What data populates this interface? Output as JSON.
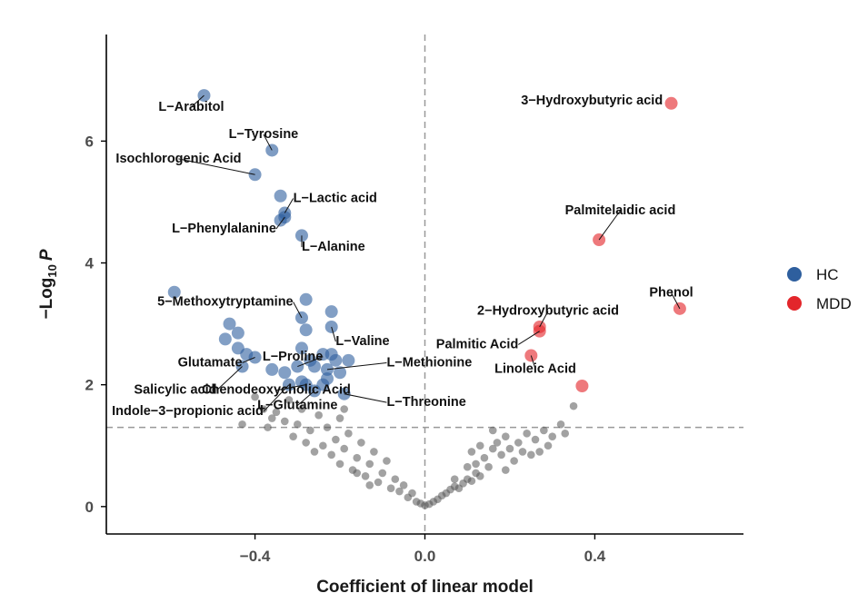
{
  "chart_data": {
    "type": "scatter",
    "title": "",
    "xlabel": "Coefficient of linear model",
    "ylabel_parts": {
      "prefix": "−Log",
      "subscript": "10",
      "suffix": "P"
    },
    "xlim": [
      -0.75,
      0.75
    ],
    "ylim": [
      -0.45,
      7.75
    ],
    "x_ticks": [
      -0.4,
      0.0,
      0.4
    ],
    "x_tick_labels": [
      "−0.4",
      "0.0",
      "0.4"
    ],
    "y_ticks": [
      0,
      2,
      4,
      6
    ],
    "y_tick_labels": [
      "0",
      "2",
      "4",
      "6"
    ],
    "threshold_y": 1.3,
    "threshold_x": 0.0,
    "colors": {
      "HC": "#2E5F9E",
      "MDD": "#E3262B",
      "NS": "#555555",
      "threshold": "#999999",
      "axis": "#000000"
    },
    "legend": [
      {
        "name": "HC",
        "color": "#2E5F9E"
      },
      {
        "name": "MDD",
        "color": "#E3262B"
      }
    ],
    "labeled_points": [
      {
        "name": "L−Arabitol",
        "x": -0.52,
        "y": 6.75,
        "group": "HC",
        "anchor": "middle",
        "lx": -0.55,
        "ly": 6.5
      },
      {
        "name": "L−Tyrosine",
        "x": -0.36,
        "y": 5.85,
        "group": "HC",
        "anchor": "middle",
        "lx": -0.38,
        "ly": 6.05
      },
      {
        "name": "Isochlorogenic Acid",
        "x": -0.4,
        "y": 5.45,
        "group": "HC",
        "anchor": "middle",
        "lx": -0.58,
        "ly": 5.65
      },
      {
        "name": "L−Lactic acid",
        "x": -0.33,
        "y": 4.82,
        "group": "HC",
        "anchor": "start",
        "lx": -0.31,
        "ly": 5.0
      },
      {
        "name": "L−Phenylalanine",
        "x": -0.33,
        "y": 4.75,
        "group": "HC",
        "anchor": "end",
        "lx": -0.35,
        "ly": 4.5
      },
      {
        "name": "L−Alanine",
        "x": -0.29,
        "y": 4.45,
        "group": "HC",
        "anchor": "start",
        "lx": -0.29,
        "ly": 4.2
      },
      {
        "name": "5−Methoxytryptamine",
        "x": -0.29,
        "y": 3.1,
        "group": "HC",
        "anchor": "end",
        "lx": -0.31,
        "ly": 3.3
      },
      {
        "name": "L−Valine",
        "x": -0.22,
        "y": 2.95,
        "group": "HC",
        "anchor": "start",
        "lx": -0.21,
        "ly": 2.65
      },
      {
        "name": "Glutamate",
        "x": -0.4,
        "y": 2.45,
        "group": "HC",
        "anchor": "end",
        "lx": -0.43,
        "ly": 2.3
      },
      {
        "name": "L−Proline",
        "x": -0.3,
        "y": 2.3,
        "group": "HC",
        "anchor": "end",
        "lx": -0.24,
        "ly": 2.4
      },
      {
        "name": "L−Methionine",
        "x": -0.23,
        "y": 2.25,
        "group": "HC",
        "anchor": "start",
        "lx": -0.09,
        "ly": 2.3
      },
      {
        "name": "Salicylic acid",
        "x": -0.43,
        "y": 2.3,
        "group": "HC",
        "anchor": "end",
        "lx": -0.49,
        "ly": 1.85
      },
      {
        "name": "Chenodeoxycholic Acid",
        "x": -0.28,
        "y": 2.0,
        "group": "HC",
        "anchor": "middle",
        "lx": -0.35,
        "ly": 1.85
      },
      {
        "name": "Indole−3−propionic acid",
        "x": -0.32,
        "y": 2.0,
        "group": "HC",
        "anchor": "end",
        "lx": -0.38,
        "ly": 1.5
      },
      {
        "name": "L−Glutamine",
        "x": -0.26,
        "y": 1.9,
        "group": "HC",
        "anchor": "middle",
        "lx": -0.3,
        "ly": 1.6
      },
      {
        "name": "L−Threonine",
        "x": -0.19,
        "y": 1.85,
        "group": "HC",
        "anchor": "start",
        "lx": -0.09,
        "ly": 1.65
      },
      {
        "name": "3−Hydroxybutyric acid",
        "x": 0.58,
        "y": 6.62,
        "group": "MDD",
        "anchor": "end",
        "lx": 0.56,
        "ly": 6.6
      },
      {
        "name": "Palmitelaidic acid",
        "x": 0.41,
        "y": 4.38,
        "group": "MDD",
        "anchor": "middle",
        "lx": 0.46,
        "ly": 4.8
      },
      {
        "name": "Phenol",
        "x": 0.6,
        "y": 3.25,
        "group": "MDD",
        "anchor": "middle",
        "lx": 0.58,
        "ly": 3.45
      },
      {
        "name": "2−Hydroxybutyric acid",
        "x": 0.27,
        "y": 2.95,
        "group": "MDD",
        "anchor": "middle",
        "lx": 0.29,
        "ly": 3.15
      },
      {
        "name": "Palmitic Acid",
        "x": 0.27,
        "y": 2.88,
        "group": "MDD",
        "anchor": "end",
        "lx": 0.22,
        "ly": 2.6
      },
      {
        "name": "Linoleic Acid",
        "x": 0.25,
        "y": 2.48,
        "group": "MDD",
        "anchor": "middle",
        "lx": 0.26,
        "ly": 2.2
      },
      {
        "name": "Unlabeled",
        "x": 0.37,
        "y": 1.98,
        "group": "MDD",
        "anchor": "none",
        "lx": 0.37,
        "ly": 1.98
      }
    ],
    "hc_unlabeled_points": [
      {
        "x": -0.59,
        "y": 3.52
      },
      {
        "x": -0.34,
        "y": 5.1
      },
      {
        "x": -0.34,
        "y": 4.7
      },
      {
        "x": -0.28,
        "y": 3.4
      },
      {
        "x": -0.28,
        "y": 2.9
      },
      {
        "x": -0.22,
        "y": 3.2
      },
      {
        "x": -0.46,
        "y": 3.0
      },
      {
        "x": -0.44,
        "y": 2.85
      },
      {
        "x": -0.47,
        "y": 2.75
      },
      {
        "x": -0.44,
        "y": 2.6
      },
      {
        "x": -0.42,
        "y": 2.5
      },
      {
        "x": -0.29,
        "y": 2.6
      },
      {
        "x": -0.24,
        "y": 2.5
      },
      {
        "x": -0.21,
        "y": 2.4
      },
      {
        "x": -0.18,
        "y": 2.4
      },
      {
        "x": -0.26,
        "y": 2.3
      },
      {
        "x": -0.23,
        "y": 2.1
      },
      {
        "x": -0.36,
        "y": 2.25
      },
      {
        "x": -0.33,
        "y": 2.2
      },
      {
        "x": -0.29,
        "y": 2.05
      },
      {
        "x": -0.24,
        "y": 2.0
      },
      {
        "x": -0.2,
        "y": 2.2
      },
      {
        "x": -0.22,
        "y": 2.5
      },
      {
        "x": -0.27,
        "y": 2.4
      }
    ],
    "ns_points": [
      {
        "x": -0.4,
        "y": 1.8
      },
      {
        "x": -0.38,
        "y": 1.6
      },
      {
        "x": -0.37,
        "y": 1.3
      },
      {
        "x": -0.35,
        "y": 1.55
      },
      {
        "x": -0.33,
        "y": 1.4
      },
      {
        "x": -0.31,
        "y": 1.15
      },
      {
        "x": -0.3,
        "y": 1.35
      },
      {
        "x": -0.28,
        "y": 1.05
      },
      {
        "x": -0.27,
        "y": 1.25
      },
      {
        "x": -0.25,
        "y": 1.5
      },
      {
        "x": -0.24,
        "y": 1.0
      },
      {
        "x": -0.23,
        "y": 1.3
      },
      {
        "x": -0.22,
        "y": 0.85
      },
      {
        "x": -0.21,
        "y": 1.1
      },
      {
        "x": -0.2,
        "y": 1.45
      },
      {
        "x": -0.2,
        "y": 0.7
      },
      {
        "x": -0.19,
        "y": 0.95
      },
      {
        "x": -0.18,
        "y": 1.2
      },
      {
        "x": -0.17,
        "y": 0.6
      },
      {
        "x": -0.16,
        "y": 0.8
      },
      {
        "x": -0.15,
        "y": 1.05
      },
      {
        "x": -0.14,
        "y": 0.5
      },
      {
        "x": -0.13,
        "y": 0.7
      },
      {
        "x": -0.12,
        "y": 0.9
      },
      {
        "x": -0.11,
        "y": 0.4
      },
      {
        "x": -0.1,
        "y": 0.55
      },
      {
        "x": -0.09,
        "y": 0.75
      },
      {
        "x": -0.08,
        "y": 0.3
      },
      {
        "x": -0.07,
        "y": 0.45
      },
      {
        "x": -0.06,
        "y": 0.25
      },
      {
        "x": -0.05,
        "y": 0.35
      },
      {
        "x": -0.04,
        "y": 0.15
      },
      {
        "x": -0.03,
        "y": 0.22
      },
      {
        "x": -0.02,
        "y": 0.08
      },
      {
        "x": -0.01,
        "y": 0.05
      },
      {
        "x": 0.0,
        "y": 0.02
      },
      {
        "x": -0.36,
        "y": 1.45
      },
      {
        "x": -0.29,
        "y": 1.6
      },
      {
        "x": -0.26,
        "y": 0.9
      },
      {
        "x": -0.16,
        "y": 0.55
      },
      {
        "x": -0.13,
        "y": 0.35
      },
      {
        "x": -0.19,
        "y": 1.6
      },
      {
        "x": -0.32,
        "y": 1.75
      },
      {
        "x": -0.43,
        "y": 1.35
      },
      {
        "x": 0.01,
        "y": 0.04
      },
      {
        "x": 0.02,
        "y": 0.08
      },
      {
        "x": 0.03,
        "y": 0.12
      },
      {
        "x": 0.04,
        "y": 0.18
      },
      {
        "x": 0.05,
        "y": 0.22
      },
      {
        "x": 0.06,
        "y": 0.28
      },
      {
        "x": 0.07,
        "y": 0.33
      },
      {
        "x": 0.08,
        "y": 0.3
      },
      {
        "x": 0.09,
        "y": 0.38
      },
      {
        "x": 0.1,
        "y": 0.45
      },
      {
        "x": 0.11,
        "y": 0.42
      },
      {
        "x": 0.12,
        "y": 0.55
      },
      {
        "x": 0.12,
        "y": 0.7
      },
      {
        "x": 0.13,
        "y": 0.5
      },
      {
        "x": 0.14,
        "y": 0.8
      },
      {
        "x": 0.15,
        "y": 0.65
      },
      {
        "x": 0.16,
        "y": 0.95
      },
      {
        "x": 0.17,
        "y": 1.05
      },
      {
        "x": 0.18,
        "y": 0.85
      },
      {
        "x": 0.19,
        "y": 1.15
      },
      {
        "x": 0.2,
        "y": 0.95
      },
      {
        "x": 0.21,
        "y": 0.75
      },
      {
        "x": 0.22,
        "y": 1.05
      },
      {
        "x": 0.23,
        "y": 0.9
      },
      {
        "x": 0.24,
        "y": 1.2
      },
      {
        "x": 0.25,
        "y": 0.85
      },
      {
        "x": 0.26,
        "y": 1.1
      },
      {
        "x": 0.27,
        "y": 0.9
      },
      {
        "x": 0.28,
        "y": 1.25
      },
      {
        "x": 0.29,
        "y": 1.0
      },
      {
        "x": 0.3,
        "y": 1.15
      },
      {
        "x": 0.32,
        "y": 1.35
      },
      {
        "x": 0.33,
        "y": 1.2
      },
      {
        "x": 0.11,
        "y": 0.9
      },
      {
        "x": 0.13,
        "y": 1.0
      },
      {
        "x": 0.16,
        "y": 1.25
      },
      {
        "x": 0.1,
        "y": 0.65
      },
      {
        "x": 0.07,
        "y": 0.45
      },
      {
        "x": 0.35,
        "y": 1.65
      },
      {
        "x": 0.19,
        "y": 0.6
      }
    ]
  }
}
